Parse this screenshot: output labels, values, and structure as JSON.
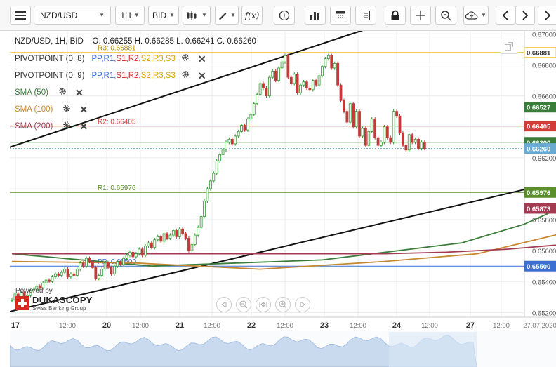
{
  "toolbar": {
    "symbol": "NZD/USD",
    "timeframe": "1H",
    "price_side": "BID",
    "fx_label": "f(x)"
  },
  "legend": {
    "ohlc": "NZD/USD, 1H, BID    O. 0.66255 H. 0.66285 L. 0.66241 C. 0.66260",
    "indicators": [
      {
        "name": "PIVOTPOINT (0, 8)",
        "params": [
          "PP,",
          "R1,",
          "S1,",
          "R2,",
          "S2,",
          "R3,",
          "S3"
        ],
        "color": "#333333"
      },
      {
        "name": "PIVOTPOINT (0, 9)",
        "params": [
          "PP,",
          "R1,",
          "S1,",
          "R2,",
          "S2,",
          "R3,",
          "S3"
        ],
        "color": "#333333"
      },
      {
        "name": "SMA (50)",
        "color": "#3a7d3a"
      },
      {
        "name": "SMA (100)",
        "color": "#c7882f"
      },
      {
        "name": "SMA (200)",
        "color": "#a33a52"
      }
    ],
    "pivot_param_colors": [
      "#3b6fd1",
      "#3b6fd1",
      "#d12b2b",
      "#d12b2b",
      "#d8a400",
      "#d8a400",
      "#d8a400"
    ]
  },
  "watermark": {
    "powered_by": "Powered by",
    "brand": "DUKASCOPY",
    "tagline": "Swiss Banking Group"
  },
  "chart_data": {
    "type": "candlestick",
    "symbol": "NZD/USD",
    "timeframe": "1H",
    "ylim": [
      0.6517,
      0.6702
    ],
    "y_ticks": [
      "0.67000",
      "0.66800",
      "0.66600",
      "0.66400",
      "0.66200",
      "0.66000",
      "0.65800",
      "0.65600",
      "0.65400",
      "0.65200"
    ],
    "x_ticks": [
      "17",
      "12:00",
      "20",
      "12:00",
      "21",
      "12:00",
      "22",
      "12:00",
      "23",
      "12:00",
      "24",
      "12:00",
      "27",
      "12:00",
      "27.07.2020"
    ],
    "bars_approx": [
      [
        0.6528,
        0.6532,
        0.6529,
        0.6533,
        0.653,
        0.6531,
        0.6534,
        0.6535,
        0.6537,
        0.6536,
        0.6539,
        0.6541,
        0.654,
        0.6543,
        0.6545,
        0.6544,
        0.6546,
        0.6548,
        0.6543,
        0.6545
      ],
      [
        0.6544,
        0.6548,
        0.6552,
        0.655,
        0.6555,
        0.6553,
        0.6549,
        0.6542,
        0.6544,
        0.6548,
        0.6552,
        0.6549,
        0.6545,
        0.655,
        0.6553,
        0.6551,
        0.6555,
        0.6557,
        0.6559,
        0.6556
      ],
      [
        0.6558,
        0.6561,
        0.6557,
        0.6563,
        0.6565,
        0.6562,
        0.6567,
        0.6569,
        0.6566,
        0.6571,
        0.6568,
        0.657,
        0.6573,
        0.6569,
        0.6574,
        0.6571,
        0.6568,
        0.656,
        0.6564,
        0.657
      ],
      [
        0.6575,
        0.6582,
        0.6592,
        0.66,
        0.6605,
        0.661,
        0.6618,
        0.6622,
        0.6625,
        0.663,
        0.6632,
        0.6629,
        0.6634,
        0.6637,
        0.6641,
        0.6638,
        0.6645,
        0.6648,
        0.6655,
        0.6661
      ],
      [
        0.6668,
        0.6665,
        0.666,
        0.6672,
        0.6676,
        0.667,
        0.6678,
        0.6682,
        0.6686,
        0.6672,
        0.6668,
        0.6674,
        0.6662,
        0.6667,
        0.6669,
        0.6665,
        0.6664,
        0.667,
        0.6667,
        0.6673
      ],
      [
        0.6679,
        0.6684,
        0.6686,
        0.6678,
        0.6681,
        0.6667,
        0.6657,
        0.665,
        0.6643,
        0.6655,
        0.664,
        0.665,
        0.6634,
        0.6639,
        0.6628,
        0.6637,
        0.6645,
        0.6633,
        0.6628,
        0.663
      ],
      [
        0.664,
        0.6633,
        0.663,
        0.665,
        0.6647,
        0.6636,
        0.6628,
        0.6625,
        0.6635,
        0.663,
        0.6632,
        0.6626,
        0.663,
        0.6626
      ]
    ],
    "series": [
      {
        "name": "SMA (50)",
        "values": [
          [
            0,
            0.6558
          ],
          [
            45,
            0.655
          ],
          [
            100,
            0.6554
          ],
          [
            145,
            0.6565
          ],
          [
            165,
            0.6577
          ],
          [
            185,
            0.6595
          ],
          [
            205,
            0.6612
          ],
          [
            225,
            0.6625
          ],
          [
            245,
            0.6643
          ],
          [
            265,
            0.6653
          ],
          [
            275,
            0.6658
          ],
          [
            295,
            0.6657
          ],
          [
            310,
            0.6654
          ]
        ]
      },
      {
        "name": "SMA (100)",
        "values": [
          [
            0,
            0.6553
          ],
          [
            40,
            0.6552
          ],
          [
            80,
            0.6548
          ],
          [
            120,
            0.6553
          ],
          [
            150,
            0.6558
          ],
          [
            175,
            0.657
          ],
          [
            205,
            0.6585
          ],
          [
            240,
            0.6597
          ],
          [
            265,
            0.6608
          ],
          [
            280,
            0.6616
          ],
          [
            298,
            0.6622
          ]
        ]
      },
      {
        "name": "SMA (200)",
        "values": [
          [
            0,
            0.6558
          ],
          [
            60,
            0.6558
          ],
          [
            120,
            0.6558
          ],
          [
            140,
            0.6559
          ],
          [
            160,
            0.6561
          ],
          [
            190,
            0.6566
          ],
          [
            225,
            0.6577
          ],
          [
            265,
            0.6584
          ],
          [
            295,
            0.6587
          ]
        ]
      }
    ],
    "horizontal_lines": [
      {
        "label": "R3: 0.66881",
        "value": 0.66881,
        "color": "#f1c84b",
        "tag": "0.66881"
      },
      {
        "label": "R2: 0.66405",
        "value": 0.66405,
        "color": "#d33b3b",
        "tag": "0.66405"
      },
      {
        "label": "",
        "value": 0.663,
        "color": "#3a7d3a",
        "tag": "0.66300"
      },
      {
        "label": "R1: 0.65976",
        "value": 0.65976,
        "color": "#5a8f2b",
        "tag": "0.65976"
      },
      {
        "label": "PP: 0.65500",
        "value": 0.655,
        "color": "#3b6fd1",
        "tag": "0.65500"
      }
    ],
    "price_tags": [
      {
        "value": 0.66527,
        "text": "0.66527",
        "bg": "#3a7d3a"
      },
      {
        "value": 0.6626,
        "text": "0.66260",
        "bg": "#6aaad0"
      },
      {
        "value": 0.65873,
        "text": "0.65873",
        "bg": "#a33a52"
      }
    ],
    "trendlines": [
      {
        "from": [
          -2,
          0.652
        ],
        "to": [
          312,
          0.65995
        ]
      },
      {
        "from": [
          -2,
          0.6626
        ],
        "to": [
          120,
          0.6707
        ]
      }
    ]
  },
  "colors": {
    "bull": "#2e9a2e",
    "bear": "#c23a3a",
    "grid": "#ececec"
  }
}
